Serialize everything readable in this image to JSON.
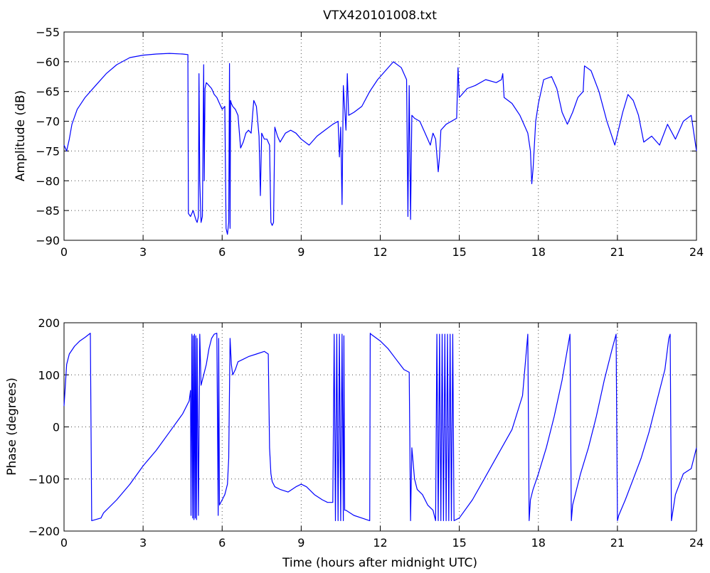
{
  "chart_data": [
    {
      "type": "line",
      "title": "VTX420101008.txt",
      "xlabel": "",
      "ylabel": "Amplitude (dB)",
      "xlim": [
        0,
        24
      ],
      "ylim": [
        -90,
        -55
      ],
      "xticks": [
        0,
        3,
        6,
        9,
        12,
        15,
        18,
        21,
        24
      ],
      "yticks": [
        -55,
        -60,
        -65,
        -70,
        -75,
        -80,
        -85,
        -90
      ],
      "grid": true,
      "color": "#0000ff",
      "series": [
        {
          "x": [
            0.0,
            0.1,
            0.2,
            0.3,
            0.5,
            0.8,
            1.2,
            1.6,
            2.0,
            2.5,
            3.0,
            3.5,
            4.0,
            4.5,
            4.7,
            4.72,
            4.8,
            4.9,
            5.0,
            5.05,
            5.1,
            5.12,
            5.15,
            5.2,
            5.25,
            5.3,
            5.32,
            5.35,
            5.4,
            5.5,
            5.6,
            5.7,
            5.8,
            5.9,
            6.0,
            6.1,
            6.15,
            6.2,
            6.25,
            6.28,
            6.3,
            6.32,
            6.35,
            6.4,
            6.5,
            6.6,
            6.7,
            6.8,
            6.9,
            7.0,
            7.1,
            7.2,
            7.3,
            7.4,
            7.45,
            7.5,
            7.55,
            7.6,
            7.7,
            7.8,
            7.85,
            7.9,
            7.95,
            8.0,
            8.1,
            8.2,
            8.4,
            8.6,
            8.8,
            9.0,
            9.3,
            9.6,
            9.9,
            10.2,
            10.4,
            10.45,
            10.5,
            10.55,
            10.6,
            10.7,
            10.75,
            10.8,
            11.0,
            11.3,
            11.6,
            11.9,
            12.2,
            12.5,
            12.8,
            13.0,
            13.05,
            13.1,
            13.15,
            13.2,
            13.3,
            13.5,
            13.7,
            13.9,
            14.0,
            14.1,
            14.2,
            14.25,
            14.3,
            14.5,
            14.7,
            14.9,
            14.95,
            15.0,
            15.3,
            15.6,
            16.0,
            16.4,
            16.6,
            16.65,
            16.7,
            17.0,
            17.3,
            17.5,
            17.6,
            17.7,
            17.75,
            17.8,
            17.9,
            18.0,
            18.2,
            18.5,
            18.7,
            18.9,
            19.1,
            19.3,
            19.5,
            19.7,
            19.75,
            20.0,
            20.3,
            20.6,
            20.9,
            21.2,
            21.4,
            21.6,
            21.8,
            22.0,
            22.3,
            22.6,
            22.9,
            23.2,
            23.5,
            23.8,
            24.0
          ],
          "y": [
            -74.0,
            -75.0,
            -73.0,
            -70.5,
            -68.0,
            -66.0,
            -64.0,
            -62.0,
            -60.5,
            -59.3,
            -58.9,
            -58.7,
            -58.6,
            -58.7,
            -58.8,
            -85.5,
            -86.0,
            -85.0,
            -86.5,
            -87.0,
            -86.0,
            -62.0,
            -80.0,
            -87.0,
            -86.0,
            -60.5,
            -80.0,
            -64.5,
            -63.5,
            -64.0,
            -64.5,
            -65.5,
            -66.0,
            -67.0,
            -68.0,
            -67.5,
            -88.0,
            -89.0,
            -87.0,
            -60.3,
            -88.0,
            -66.5,
            -67.0,
            -67.5,
            -68.0,
            -69.0,
            -74.5,
            -73.5,
            -72.0,
            -71.5,
            -72.0,
            -66.5,
            -67.5,
            -72.5,
            -82.5,
            -72.0,
            -72.5,
            -73.0,
            -73.0,
            -74.0,
            -87.0,
            -87.5,
            -87.0,
            -71.0,
            -72.5,
            -73.5,
            -72.0,
            -71.5,
            -72.0,
            -73.0,
            -74.0,
            -72.5,
            -71.5,
            -70.5,
            -70.0,
            -76.0,
            -71.0,
            -84.0,
            -64.0,
            -71.5,
            -62.0,
            -69.0,
            -68.5,
            -67.5,
            -65.0,
            -63.0,
            -61.5,
            -60.0,
            -61.0,
            -63.0,
            -86.0,
            -64.0,
            -86.5,
            -69.0,
            -69.5,
            -70.0,
            -72.0,
            -74.0,
            -72.0,
            -73.0,
            -78.5,
            -76.0,
            -71.5,
            -70.5,
            -70.0,
            -69.5,
            -61.0,
            -66.0,
            -64.5,
            -64.0,
            -63.0,
            -63.5,
            -63.0,
            -62.0,
            -66.0,
            -67.0,
            -69.0,
            -71.0,
            -72.0,
            -75.0,
            -80.5,
            -78.0,
            -70.0,
            -67.0,
            -63.0,
            -62.5,
            -64.5,
            -68.5,
            -70.5,
            -68.5,
            -66.0,
            -65.0,
            -60.7,
            -61.5,
            -65.0,
            -70.0,
            -74.0,
            -68.5,
            -65.5,
            -66.5,
            -69.0,
            -73.5,
            -72.5,
            -74.0,
            -70.5,
            -73.0,
            -70.0,
            -69.0,
            -75.0
          ]
        }
      ]
    },
    {
      "type": "line",
      "title": "",
      "xlabel": "Time (hours after midnight UTC)",
      "ylabel": "Phase (degrees)",
      "xlim": [
        0,
        24
      ],
      "ylim": [
        -200,
        200
      ],
      "xticks": [
        0,
        3,
        6,
        9,
        12,
        15,
        18,
        21,
        24
      ],
      "yticks": [
        200,
        100,
        0,
        -100,
        -200
      ],
      "grid": true,
      "color": "#0000ff",
      "series": [
        {
          "x": [
            0.0,
            0.1,
            0.2,
            0.4,
            0.6,
            0.8,
            0.95,
            1.0,
            1.05,
            1.4,
            1.5,
            2.0,
            2.5,
            3.0,
            3.5,
            4.0,
            4.5,
            4.75,
            4.8,
            4.82,
            4.85,
            4.88,
            4.9,
            4.93,
            4.95,
            4.98,
            5.0,
            5.03,
            5.05,
            5.1,
            5.15,
            5.2,
            5.3,
            5.4,
            5.5,
            5.6,
            5.7,
            5.8,
            5.85,
            5.87,
            5.9,
            6.0,
            6.1,
            6.2,
            6.25,
            6.3,
            6.35,
            6.4,
            6.5,
            6.6,
            6.8,
            7.0,
            7.3,
            7.6,
            7.75,
            7.8,
            7.85,
            7.9,
            8.0,
            8.2,
            8.5,
            8.8,
            9.0,
            9.2,
            9.5,
            9.8,
            10.0,
            10.2,
            10.25,
            10.3,
            10.35,
            10.4,
            10.45,
            10.5,
            10.55,
            10.6,
            10.62,
            10.65,
            10.7,
            11.0,
            11.3,
            11.6,
            11.62,
            11.65,
            12.0,
            12.3,
            12.6,
            12.9,
            13.1,
            13.15,
            13.2,
            13.3,
            13.4,
            13.6,
            13.8,
            14.0,
            14.1,
            14.15,
            14.2,
            14.25,
            14.3,
            14.35,
            14.4,
            14.45,
            14.5,
            14.55,
            14.6,
            14.65,
            14.7,
            14.75,
            14.8,
            15.0,
            15.5,
            16.0,
            16.5,
            17.0,
            17.4,
            17.6,
            17.65,
            17.7,
            17.8,
            18.0,
            18.3,
            18.6,
            18.9,
            19.2,
            19.25,
            19.3,
            19.6,
            19.9,
            20.2,
            20.5,
            20.8,
            20.95,
            21.0,
            21.05,
            21.3,
            21.6,
            21.9,
            22.2,
            22.5,
            22.8,
            22.95,
            23.0,
            23.05,
            23.2,
            23.5,
            23.8,
            24.0
          ],
          "y": [
            40,
            120,
            140,
            155,
            165,
            172,
            178,
            180,
            -180,
            -175,
            -165,
            -140,
            -110,
            -75,
            -45,
            -10,
            25,
            50,
            70,
            -170,
            178,
            -175,
            175,
            -178,
            178,
            -175,
            175,
            -178,
            170,
            -170,
            178,
            80,
            100,
            120,
            150,
            170,
            178,
            180,
            -170,
            170,
            -150,
            -140,
            -130,
            -110,
            -60,
            170,
            120,
            100,
            110,
            125,
            130,
            135,
            140,
            145,
            140,
            -40,
            -90,
            -105,
            -115,
            -120,
            -125,
            -115,
            -110,
            -115,
            -130,
            -140,
            -145,
            -145,
            178,
            -180,
            178,
            -180,
            178,
            -180,
            178,
            -180,
            175,
            -160,
            -160,
            -170,
            -175,
            -180,
            180,
            178,
            165,
            150,
            130,
            110,
            105,
            -180,
            -40,
            -100,
            -120,
            -130,
            -150,
            -160,
            -180,
            178,
            -180,
            178,
            -180,
            178,
            -180,
            178,
            -180,
            178,
            -180,
            178,
            -180,
            178,
            -180,
            -175,
            -140,
            -95,
            -50,
            -5,
            60,
            178,
            -180,
            -140,
            -120,
            -90,
            -40,
            20,
            90,
            178,
            -180,
            -150,
            -90,
            -40,
            20,
            90,
            150,
            178,
            -180,
            -170,
            -140,
            -100,
            -60,
            -10,
            50,
            110,
            170,
            178,
            -180,
            -130,
            -90,
            -80,
            -40
          ]
        }
      ]
    }
  ]
}
